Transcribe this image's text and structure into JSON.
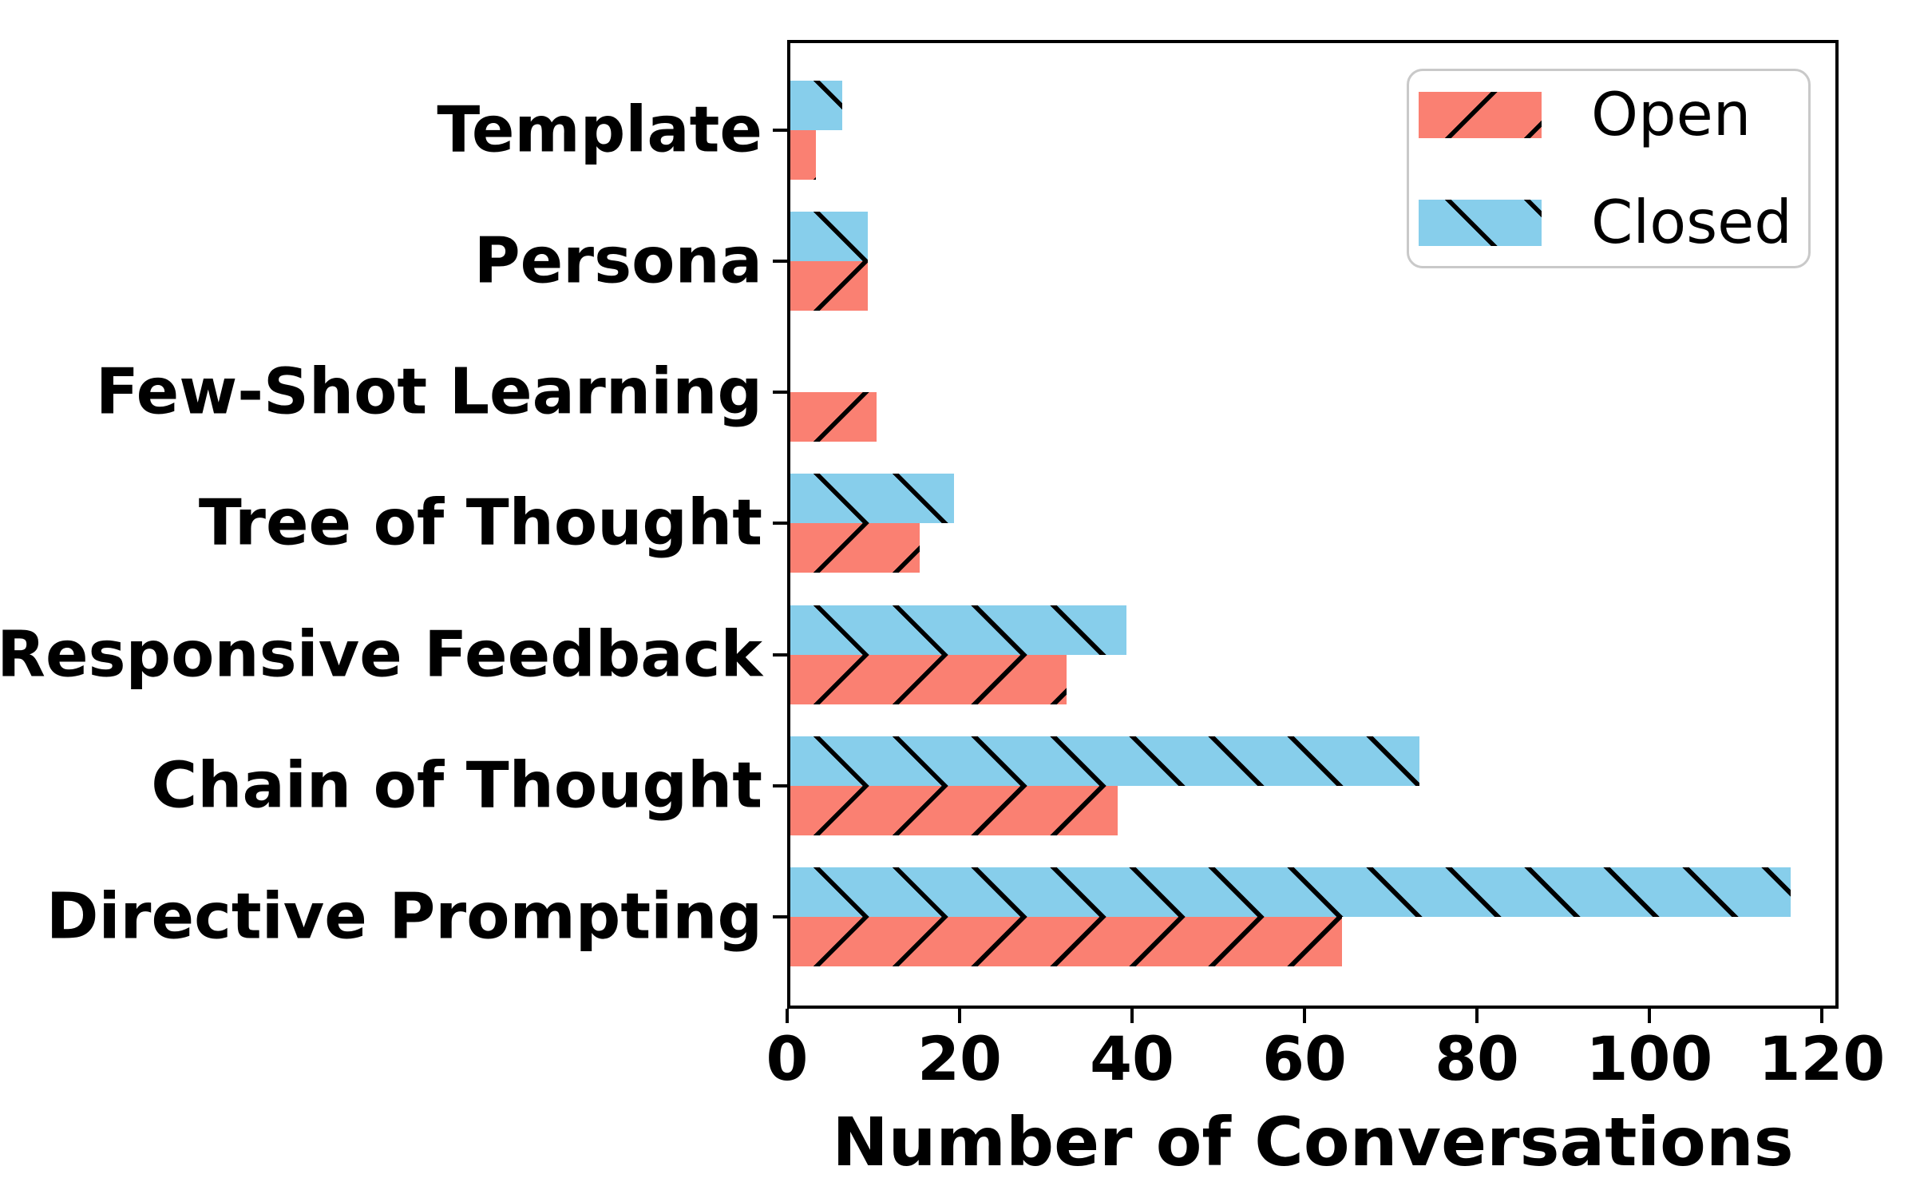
{
  "chart_data": {
    "type": "bar",
    "orientation": "horizontal",
    "title": "",
    "xlabel": "Number of Conversations",
    "ylabel": "",
    "categories": [
      "Template",
      "Persona",
      "Few-Shot Learning",
      "Tree of Thought",
      "Responsive Feedback",
      "Chain of Thought",
      "Directive Prompting"
    ],
    "series": [
      {
        "name": "Open",
        "color": "#FA8072",
        "hatch": "/",
        "values": [
          3,
          9,
          10,
          15,
          32,
          38,
          64
        ]
      },
      {
        "name": "Closed",
        "color": "#87CEEB",
        "hatch": "\\",
        "values": [
          6,
          9,
          0,
          19,
          39,
          73,
          116
        ]
      }
    ],
    "x_ticks": [
      0,
      20,
      40,
      60,
      80,
      100,
      120
    ],
    "xlim": [
      0,
      122
    ],
    "grid": false,
    "legend_position": "upper right",
    "hatch_color": "#000000",
    "background_color": "#ffffff"
  }
}
